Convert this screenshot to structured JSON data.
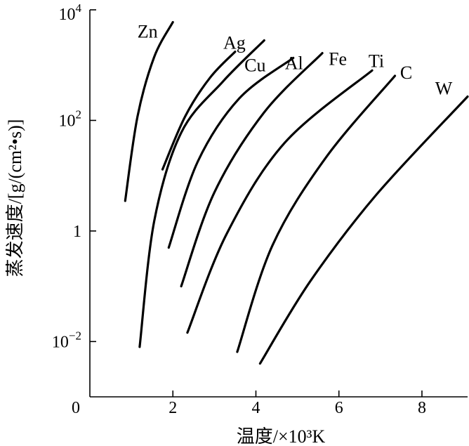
{
  "chart_data": {
    "type": "line",
    "xlabel": "温度/×10³K",
    "ylabel": "蒸发速度/[g/(cm²•s)]",
    "x_scale": "linear",
    "y_scale": "log",
    "xlim": [
      0,
      9.1
    ],
    "ylim": [
      0.001,
      10000
    ],
    "x_ticks": [
      {
        "value": 0,
        "label": "0"
      },
      {
        "value": 2,
        "label": "2"
      },
      {
        "value": 4,
        "label": "4"
      },
      {
        "value": 6,
        "label": "6"
      },
      {
        "value": 8,
        "label": "8"
      }
    ],
    "y_ticks": [
      {
        "value": 0.01,
        "base": "10",
        "exp": "−2"
      },
      {
        "value": 1,
        "base": "1",
        "exp": ""
      },
      {
        "value": 100,
        "base": "10",
        "exp": "2"
      },
      {
        "value": 10000,
        "base": "10",
        "exp": "4"
      }
    ],
    "series": [
      {
        "name": "Zn",
        "points": [
          [
            0.85,
            3.5
          ],
          [
            1.15,
            120
          ],
          [
            1.55,
            1400
          ],
          [
            2.0,
            6000
          ]
        ]
      },
      {
        "name": "Ag",
        "points": [
          [
            1.75,
            13
          ],
          [
            2.3,
            120
          ],
          [
            2.9,
            600
          ],
          [
            3.5,
            1750
          ]
        ]
      },
      {
        "name": "Cu",
        "points": [
          [
            1.2,
            0.008
          ],
          [
            1.55,
            1.5
          ],
          [
            2.2,
            60
          ],
          [
            3.2,
            500
          ],
          [
            4.2,
            2800
          ]
        ]
      },
      {
        "name": "Al",
        "points": [
          [
            1.9,
            0.5
          ],
          [
            2.6,
            18
          ],
          [
            3.6,
            250
          ],
          [
            4.9,
            1350
          ]
        ]
      },
      {
        "name": "Fe",
        "points": [
          [
            2.2,
            0.1
          ],
          [
            3.0,
            5
          ],
          [
            4.2,
            140
          ],
          [
            5.6,
            1650
          ]
        ]
      },
      {
        "name": "Ti",
        "points": [
          [
            2.35,
            0.0145
          ],
          [
            3.3,
            0.9
          ],
          [
            4.7,
            40
          ],
          [
            6.8,
            800
          ]
        ]
      },
      {
        "name": "C",
        "points": [
          [
            3.55,
            0.0065
          ],
          [
            4.4,
            0.55
          ],
          [
            5.7,
            22
          ],
          [
            7.35,
            640
          ]
        ]
      },
      {
        "name": "W",
        "points": [
          [
            4.1,
            0.004
          ],
          [
            5.3,
            0.12
          ],
          [
            6.9,
            4.5
          ],
          [
            9.1,
            270
          ]
        ]
      }
    ]
  }
}
